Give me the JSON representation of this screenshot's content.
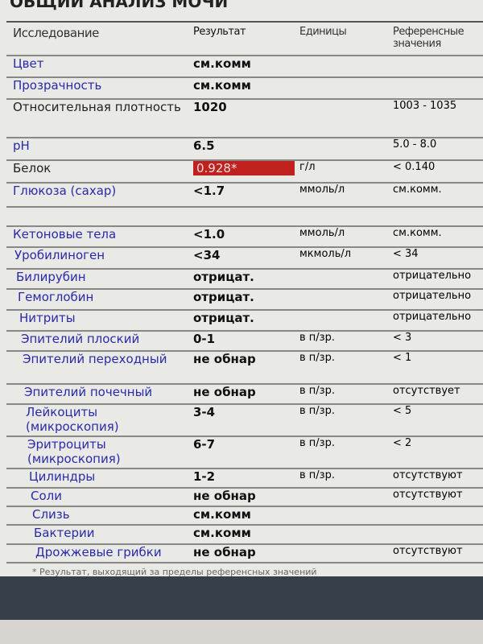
{
  "title": "ОБЩИЙ АНАЛИЗ МОЧИ",
  "headers": {
    "name": "Исследование",
    "result": "Результат",
    "units": "Единицы",
    "ref": "Референсные значения"
  },
  "rows": [
    {
      "name": "Цвет",
      "result": "см.комм",
      "units": "",
      "ref": "",
      "color": "blue"
    },
    {
      "name": "Прозрачность",
      "result": "см.комм",
      "units": "",
      "ref": "",
      "color": "blue"
    },
    {
      "name": "Относительная плотность",
      "result": "1020",
      "units": "",
      "ref": "1003 - 1035",
      "color": "black"
    },
    {
      "name": "pH",
      "result": "6.5",
      "units": "",
      "ref": "5.0 - 8.0",
      "color": "blue"
    },
    {
      "name": "Белок",
      "result": "0.928*",
      "units": "г/л",
      "ref": "< 0.140",
      "color": "black",
      "flag": true
    },
    {
      "name": "Глюкоза (сахар)",
      "result": "<1.7",
      "units": "ммоль/л",
      "ref": "см.комм.",
      "color": "blue"
    },
    {
      "name": "Кетоновые тела",
      "result": "<1.0",
      "units": "ммоль/л",
      "ref": "см.комм.",
      "color": "blue",
      "gap": true
    },
    {
      "name": "Уробилиноген",
      "result": "<34",
      "units": "мкмоль/л",
      "ref": "< 34",
      "color": "blue"
    },
    {
      "name": "Билирубин",
      "result": "отрицат.",
      "units": "",
      "ref": "отрицательно",
      "color": "blue"
    },
    {
      "name": "Гемоглобин",
      "result": "отрицат.",
      "units": "",
      "ref": "отрицательно",
      "color": "blue"
    },
    {
      "name": "Нитриты",
      "result": "отрицат.",
      "units": "",
      "ref": "отрицательно",
      "color": "blue"
    },
    {
      "name": "Эпителий плоский",
      "result": "0-1",
      "units": "в п/зр.",
      "ref": "< 3",
      "color": "blue"
    },
    {
      "name": "Эпителий переходный",
      "result": "не обнар",
      "units": "в п/зр.",
      "ref": "< 1",
      "color": "blue"
    },
    {
      "name": "Эпителий почечный",
      "result": "не обнар",
      "units": "в п/зр.",
      "ref": "отсутствует",
      "color": "blue"
    },
    {
      "name": "Лейкоциты (микроскопия)",
      "result": "3-4",
      "units": "в п/зр.",
      "ref": "< 5",
      "color": "blue"
    },
    {
      "name": "Эритроциты (микроскопия)",
      "result": "6-7",
      "units": "в п/зр.",
      "ref": "< 2",
      "color": "blue"
    },
    {
      "name": "Цилиндры",
      "result": "1-2",
      "units": "в п/зр.",
      "ref": "отсутствуют",
      "color": "blue"
    },
    {
      "name": "Соли",
      "result": "не обнар",
      "units": "",
      "ref": "отсутствуют",
      "color": "blue"
    },
    {
      "name": "Слизь",
      "result": "см.комм",
      "units": "",
      "ref": "",
      "color": "blue"
    },
    {
      "name": "Бактерии",
      "result": "см.комм",
      "units": "",
      "ref": "",
      "color": "blue"
    },
    {
      "name": "Дрожжевые грибки",
      "result": "не обнар",
      "units": "",
      "ref": "отсутствуют",
      "color": "blue"
    }
  ],
  "footnote": "* Результат, выходящий за пределы референсных значений",
  "colors": {
    "name_blue": "#2a2aa8",
    "flag_red": "#c0201e"
  }
}
